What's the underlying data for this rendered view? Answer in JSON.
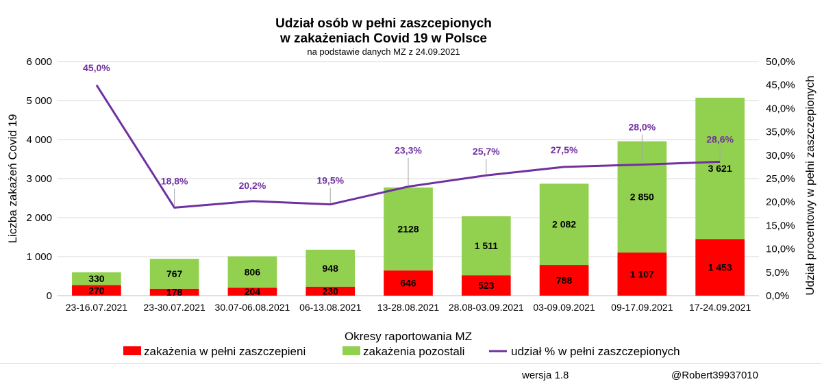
{
  "chart_data": {
    "type": "bar",
    "stacked": true,
    "title_line1": "Udział osób w pełni zaszcepionych",
    "title_line2": "w zakażeniach Covid 19 w Polsce",
    "subtitle": "na podstawie danych MZ z 24.09.2021",
    "xlabel": "Okresy raportowania MZ",
    "ylabel": "Liczba zakażeń Covid 19",
    "y2label": "Udział procentowy w pełni zaszczepionych",
    "ylim": [
      0,
      6000
    ],
    "y2lim": [
      0,
      50
    ],
    "y_ticks": [
      "0",
      "1 000",
      "2 000",
      "3 000",
      "4 000",
      "5 000",
      "6 000"
    ],
    "y2_ticks": [
      "0,0%",
      "5,0%",
      "10,0%",
      "15,0%",
      "20,0%",
      "25,0%",
      "30,0%",
      "35,0%",
      "40,0%",
      "45,0%",
      "50,0%"
    ],
    "categories": [
      "23-16.07.2021",
      "23-30.07.2021",
      "30.07-06.08.2021",
      "06-13.08.2021",
      "13-28.08.2021",
      "28.08-03.09.2021",
      "03-09.09.2021",
      "09-17.09.2021",
      "17-24.09.2021"
    ],
    "series": [
      {
        "name": "zakażenia w pełni zaszczepieni",
        "color": "#ff0000",
        "values": [
          270,
          178,
          204,
          230,
          646,
          523,
          788,
          1107,
          1453
        ],
        "labels": [
          "270",
          "178",
          "204",
          "230",
          "646",
          "523",
          "788",
          "1 107",
          "1 453"
        ]
      },
      {
        "name": "zakażenia pozostali",
        "color": "#92d050",
        "values": [
          330,
          767,
          806,
          948,
          2128,
          1511,
          2082,
          2850,
          3621
        ],
        "labels": [
          "330",
          "767",
          "806",
          "948",
          "2128",
          "1 511",
          "2 082",
          "2 850",
          "3 621"
        ]
      },
      {
        "name": "udział % w pełni zaszczepionych",
        "type": "line",
        "axis": "right",
        "color": "#7030a0",
        "values": [
          45.0,
          18.8,
          20.2,
          19.5,
          23.3,
          25.7,
          27.5,
          28.0,
          28.6
        ],
        "labels": [
          "45,0%",
          "18,8%",
          "20,2%",
          "19,5%",
          "23,3%",
          "25,7%",
          "27,5%",
          "28,0%",
          "28,6%"
        ]
      }
    ],
    "legend_position": "bottom",
    "grid": true
  },
  "footer": {
    "version": "wersja 1.8",
    "author": "@Robert39937010"
  }
}
